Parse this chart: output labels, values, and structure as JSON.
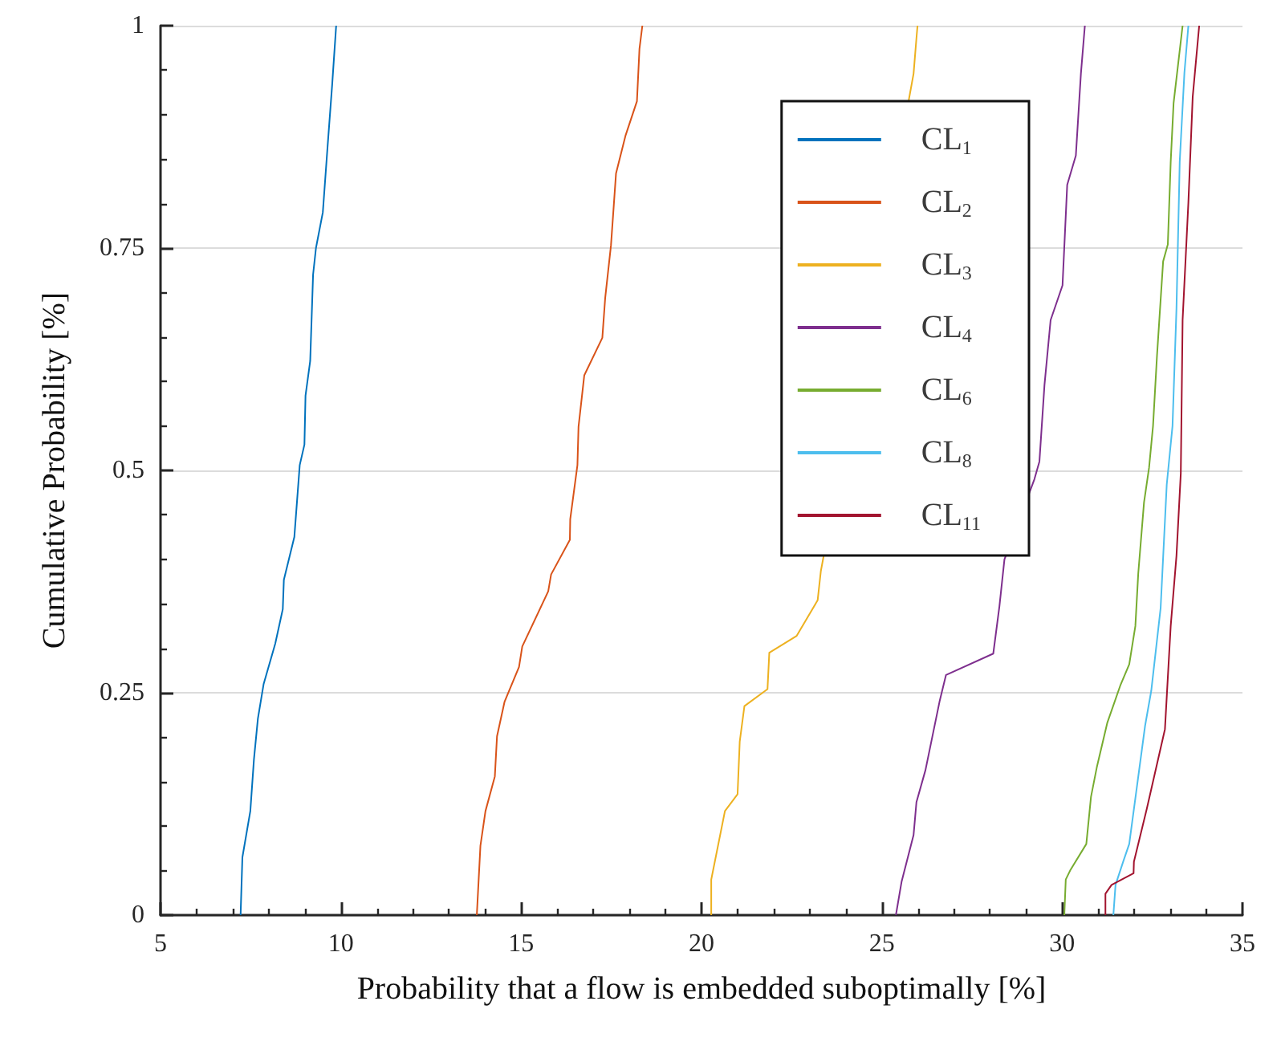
{
  "chart_data": {
    "type": "line",
    "xlabel": "Probability that a flow is embedded suboptimally [%]",
    "ylabel": "Cumulative Probability [%]",
    "xlim": [
      5,
      35
    ],
    "xticks": [
      5,
      10,
      15,
      20,
      25,
      30,
      35
    ],
    "ylim": [
      0,
      1
    ],
    "yticks": [
      0,
      0.25,
      0.5,
      0.75,
      1
    ],
    "grid": "y",
    "legend": "top right",
    "marker": "none",
    "line_style": "solid",
    "series": [
      {
        "name": "CL$_{1}$",
        "color": "#0072bd",
        "x": [
          7.22,
          7.27,
          7.49,
          7.59,
          7.7,
          7.86,
          8.18,
          8.39,
          8.42,
          8.71,
          8.86,
          8.99,
          9.02,
          9.15,
          9.23,
          9.31,
          9.5,
          9.63,
          9.76,
          9.87
        ],
        "values": [
          0,
          0.065,
          0.117,
          0.175,
          0.221,
          0.26,
          0.305,
          0.344,
          0.377,
          0.425,
          0.506,
          0.529,
          0.584,
          0.623,
          0.72,
          0.75,
          0.79,
          0.863,
          0.934,
          1
        ]
      },
      {
        "name": "CL$_{2}$",
        "color": "#d95319",
        "x": [
          13.77,
          13.87,
          14.01,
          14.27,
          14.33,
          14.54,
          14.94,
          15.03,
          15.75,
          15.83,
          16.35,
          16.36,
          16.56,
          16.59,
          16.75,
          17.25,
          17.33,
          17.49,
          17.63,
          17.89,
          18.21,
          18.28,
          18.36
        ],
        "values": [
          0,
          0.078,
          0.117,
          0.156,
          0.201,
          0.24,
          0.279,
          0.302,
          0.364,
          0.383,
          0.422,
          0.445,
          0.506,
          0.549,
          0.607,
          0.649,
          0.694,
          0.753,
          0.834,
          0.876,
          0.915,
          0.974,
          1
        ]
      },
      {
        "name": "CL$_{3}$",
        "color": "#edb120",
        "x": [
          20.27,
          20.27,
          20.65,
          21.0,
          21.06,
          21.19,
          21.83,
          21.88,
          22.64,
          23.22,
          23.31,
          25.75,
          25.88,
          25.96,
          25.99
        ],
        "values": [
          0,
          0.04,
          0.117,
          0.136,
          0.195,
          0.235,
          0.254,
          0.295,
          0.314,
          0.354,
          0.387,
          0.917,
          0.946,
          0.986,
          1
        ]
      },
      {
        "name": "CL$_{4}$",
        "color": "#7e2f8e",
        "x": [
          25.39,
          25.55,
          25.88,
          25.96,
          26.21,
          26.6,
          26.78,
          28.09,
          28.26,
          28.4,
          29.23,
          29.37,
          29.51,
          29.68,
          30.01,
          30.14,
          30.38,
          30.52,
          30.63
        ],
        "values": [
          0,
          0.038,
          0.09,
          0.127,
          0.163,
          0.24,
          0.27,
          0.294,
          0.347,
          0.4,
          0.49,
          0.51,
          0.596,
          0.669,
          0.708,
          0.821,
          0.854,
          0.946,
          1
        ]
      },
      {
        "name": "CL$_{6}$",
        "color": "#77ac30",
        "x": [
          30.06,
          30.1,
          30.22,
          30.67,
          30.8,
          30.96,
          31.25,
          31.62,
          31.86,
          32.03,
          32.11,
          32.27,
          32.41,
          32.52,
          32.63,
          32.8,
          32.93,
          33.01,
          33.09,
          33.34
        ],
        "values": [
          0,
          0.04,
          0.05,
          0.08,
          0.133,
          0.166,
          0.216,
          0.259,
          0.282,
          0.325,
          0.384,
          0.464,
          0.503,
          0.55,
          0.629,
          0.735,
          0.754,
          0.847,
          0.913,
          1
        ]
      },
      {
        "name": "CL$_{8}$",
        "color": "#4dbeee",
        "x": [
          31.42,
          31.48,
          31.7,
          31.86,
          32.3,
          32.47,
          32.73,
          32.9,
          33.06,
          33.17,
          33.26,
          33.39,
          33.5
        ],
        "values": [
          0,
          0.034,
          0.061,
          0.08,
          0.213,
          0.252,
          0.345,
          0.484,
          0.55,
          0.682,
          0.847,
          0.947,
          1
        ]
      },
      {
        "name": "CL$_{11}$",
        "color": "#a2142f",
        "x": [
          31.2,
          31.2,
          31.37,
          31.98,
          31.99,
          32.35,
          32.85,
          33.01,
          33.17,
          33.29,
          33.34,
          33.5,
          33.62,
          33.8
        ],
        "values": [
          0,
          0.024,
          0.034,
          0.047,
          0.06,
          0.12,
          0.209,
          0.325,
          0.404,
          0.497,
          0.669,
          0.801,
          0.92,
          1
        ]
      }
    ]
  }
}
